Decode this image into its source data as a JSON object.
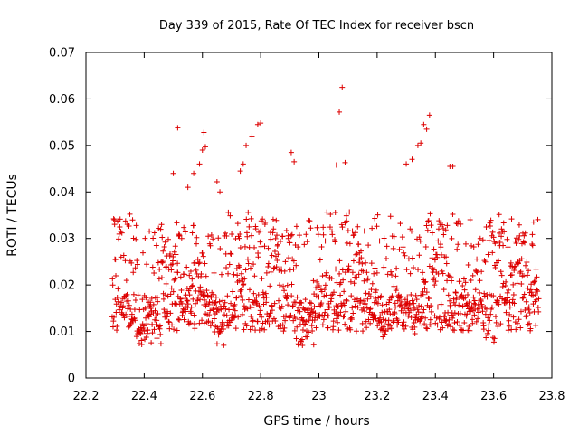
{
  "chart_data": {
    "type": "scatter",
    "title": "Day 339 of 2015, Rate Of TEC Index for receiver bscn",
    "xlabel": "GPS time / hours",
    "ylabel": "ROTI / TECUs",
    "xlim": [
      22.2,
      23.8
    ],
    "ylim": [
      0,
      0.07
    ],
    "xticks": [
      22.2,
      22.4,
      22.6,
      22.8,
      23,
      23.2,
      23.4,
      23.6,
      23.8
    ],
    "xtick_labels": [
      "22.2",
      "22.4",
      "22.6",
      "22.8",
      "23",
      "23.2",
      "23.4",
      "23.6",
      "23.8"
    ],
    "yticks": [
      0,
      0.01,
      0.02,
      0.03,
      0.04,
      0.05,
      0.06,
      0.07
    ],
    "ytick_labels": [
      "0",
      "0.01",
      "0.02",
      "0.03",
      "0.04",
      "0.05",
      "0.06",
      "0.07"
    ],
    "marker": "plus",
    "color": "#dd0000",
    "grid": false,
    "x_start": 22.29,
    "x_end": 23.755,
    "n_points_approx": 1400,
    "spikes": [
      {
        "t": 22.5,
        "v": 0.044
      },
      {
        "t": 22.515,
        "v": 0.0538
      },
      {
        "t": 22.55,
        "v": 0.041
      },
      {
        "t": 22.57,
        "v": 0.044
      },
      {
        "t": 22.59,
        "v": 0.046
      },
      {
        "t": 22.6,
        "v": 0.049
      },
      {
        "t": 22.605,
        "v": 0.0528
      },
      {
        "t": 22.61,
        "v": 0.0497
      },
      {
        "t": 22.65,
        "v": 0.0422
      },
      {
        "t": 22.66,
        "v": 0.04
      },
      {
        "t": 22.73,
        "v": 0.0445
      },
      {
        "t": 22.74,
        "v": 0.046
      },
      {
        "t": 22.75,
        "v": 0.05
      },
      {
        "t": 22.77,
        "v": 0.052
      },
      {
        "t": 22.79,
        "v": 0.0545
      },
      {
        "t": 22.8,
        "v": 0.0548
      },
      {
        "t": 22.905,
        "v": 0.0485
      },
      {
        "t": 22.915,
        "v": 0.0465
      },
      {
        "t": 23.06,
        "v": 0.0458
      },
      {
        "t": 23.07,
        "v": 0.0572
      },
      {
        "t": 23.08,
        "v": 0.0625
      },
      {
        "t": 23.09,
        "v": 0.0463
      },
      {
        "t": 23.3,
        "v": 0.046
      },
      {
        "t": 23.32,
        "v": 0.047
      },
      {
        "t": 23.34,
        "v": 0.05
      },
      {
        "t": 23.35,
        "v": 0.0505
      },
      {
        "t": 23.36,
        "v": 0.0545
      },
      {
        "t": 23.37,
        "v": 0.0535
      },
      {
        "t": 23.38,
        "v": 0.0565
      },
      {
        "t": 23.45,
        "v": 0.0455
      },
      {
        "t": 23.46,
        "v": 0.0455
      }
    ]
  }
}
